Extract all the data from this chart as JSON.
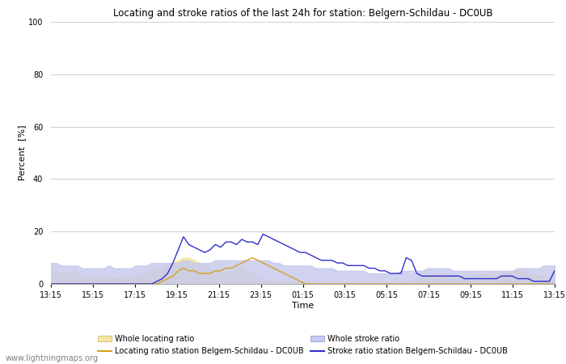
{
  "title": "Locating and stroke ratios of the last 24h for station: Belgern-Schildau - DC0UB",
  "xlabel": "Time",
  "ylabel": "Percent  [%]",
  "watermark": "www.lightningmaps.org",
  "x_ticks": [
    "13:15",
    "15:15",
    "17:15",
    "19:15",
    "21:15",
    "23:15",
    "01:15",
    "03:15",
    "05:15",
    "07:15",
    "09:15",
    "11:15",
    "13:15"
  ],
  "ylim": [
    0,
    100
  ],
  "yticks": [
    0,
    20,
    40,
    60,
    80,
    100
  ],
  "whole_locating_fill_color": "#f5e6a0",
  "whole_stroke_fill_color": "#c8caee",
  "locating_line_color": "#d4a020",
  "stroke_line_color": "#3030cc",
  "whole_locating": [
    5,
    5,
    4,
    4,
    5,
    5,
    3,
    3,
    3,
    3,
    3,
    3,
    2,
    2,
    3,
    3,
    4,
    4,
    5,
    6,
    6,
    6,
    7,
    8,
    9,
    10,
    10,
    9,
    8,
    7,
    6,
    5,
    4,
    4,
    5,
    6,
    6,
    5,
    4,
    3,
    2,
    1,
    1,
    1,
    1,
    1,
    1,
    1,
    1,
    0,
    0,
    0,
    0,
    0,
    0,
    0,
    0,
    0,
    0,
    0,
    0,
    0,
    0,
    0,
    0,
    0,
    0,
    1,
    1,
    2,
    2,
    3,
    3,
    4,
    4,
    4,
    3,
    3,
    3,
    3,
    4,
    4,
    4,
    3,
    3,
    4,
    4,
    5,
    5,
    5,
    4,
    4,
    3,
    3,
    2,
    2
  ],
  "whole_stroke": [
    8,
    8,
    7,
    7,
    7,
    7,
    6,
    6,
    6,
    6,
    6,
    7,
    6,
    6,
    6,
    6,
    7,
    7,
    7,
    8,
    8,
    8,
    8,
    8,
    8,
    9,
    9,
    8,
    8,
    8,
    8,
    9,
    9,
    9,
    9,
    9,
    9,
    9,
    9,
    9,
    9,
    9,
    8,
    8,
    7,
    7,
    7,
    7,
    7,
    7,
    6,
    6,
    6,
    6,
    5,
    5,
    5,
    5,
    5,
    5,
    4,
    4,
    4,
    4,
    4,
    4,
    5,
    5,
    5,
    5,
    5,
    6,
    6,
    6,
    6,
    6,
    5,
    5,
    5,
    5,
    5,
    5,
    5,
    5,
    5,
    5,
    5,
    5,
    6,
    6,
    6,
    6,
    6,
    7,
    7,
    7
  ],
  "locating_ratio": [
    0,
    0,
    0,
    0,
    0,
    0,
    0,
    0,
    0,
    0,
    0,
    0,
    0,
    0,
    0,
    0,
    0,
    0,
    0,
    0,
    0,
    1,
    2,
    3,
    5,
    6,
    5,
    5,
    4,
    4,
    4,
    5,
    5,
    6,
    6,
    7,
    8,
    9,
    10,
    9,
    8,
    7,
    6,
    5,
    4,
    3,
    2,
    1,
    0,
    0,
    0,
    0,
    0,
    0,
    0,
    0,
    0,
    0,
    0,
    0,
    0,
    0,
    0,
    0,
    0,
    0,
    0,
    0,
    0,
    0,
    0,
    0,
    0,
    0,
    0,
    0,
    0,
    0,
    0,
    0,
    0,
    0,
    0,
    0,
    0,
    0,
    0,
    0,
    0,
    0,
    0,
    0,
    0,
    0,
    0,
    0
  ],
  "stroke_ratio": [
    0,
    0,
    0,
    0,
    0,
    0,
    0,
    0,
    0,
    0,
    0,
    0,
    0,
    0,
    0,
    0,
    0,
    0,
    0,
    0,
    1,
    2,
    4,
    8,
    13,
    18,
    15,
    14,
    13,
    12,
    13,
    15,
    14,
    16,
    16,
    15,
    17,
    16,
    16,
    15,
    19,
    18,
    17,
    16,
    15,
    14,
    13,
    12,
    12,
    11,
    10,
    9,
    9,
    9,
    8,
    8,
    7,
    7,
    7,
    7,
    6,
    6,
    5,
    5,
    4,
    4,
    4,
    10,
    9,
    4,
    3,
    3,
    3,
    3,
    3,
    3,
    3,
    3,
    2,
    2,
    2,
    2,
    2,
    2,
    2,
    3,
    3,
    3,
    2,
    2,
    2,
    1,
    1,
    1,
    1,
    5
  ]
}
